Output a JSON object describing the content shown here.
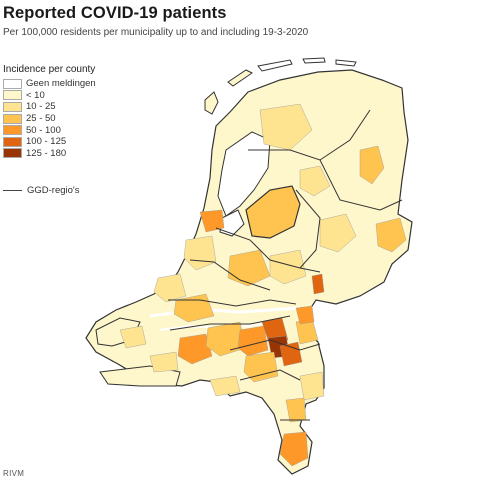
{
  "title": "Reported COVID-19 patients",
  "subtitle": "Per 100,000 residents per municipality up to and including 19-3-2020",
  "legend": {
    "title": "Incidence per county",
    "classes": [
      {
        "label": "Geen meldingen",
        "color": "#ffffff"
      },
      {
        "label": "< 10",
        "color": "#fff7cc"
      },
      {
        "label": "10 - 25",
        "color": "#fee391"
      },
      {
        "label": "25 - 50",
        "color": "#fec44f"
      },
      {
        "label": "50 - 100",
        "color": "#fe9929"
      },
      {
        "label": "100 - 125",
        "color": "#e06511"
      },
      {
        "label": "125 - 180",
        "color": "#993404"
      }
    ],
    "boundary_label": "GGD-regio's"
  },
  "source": "RIVM"
}
